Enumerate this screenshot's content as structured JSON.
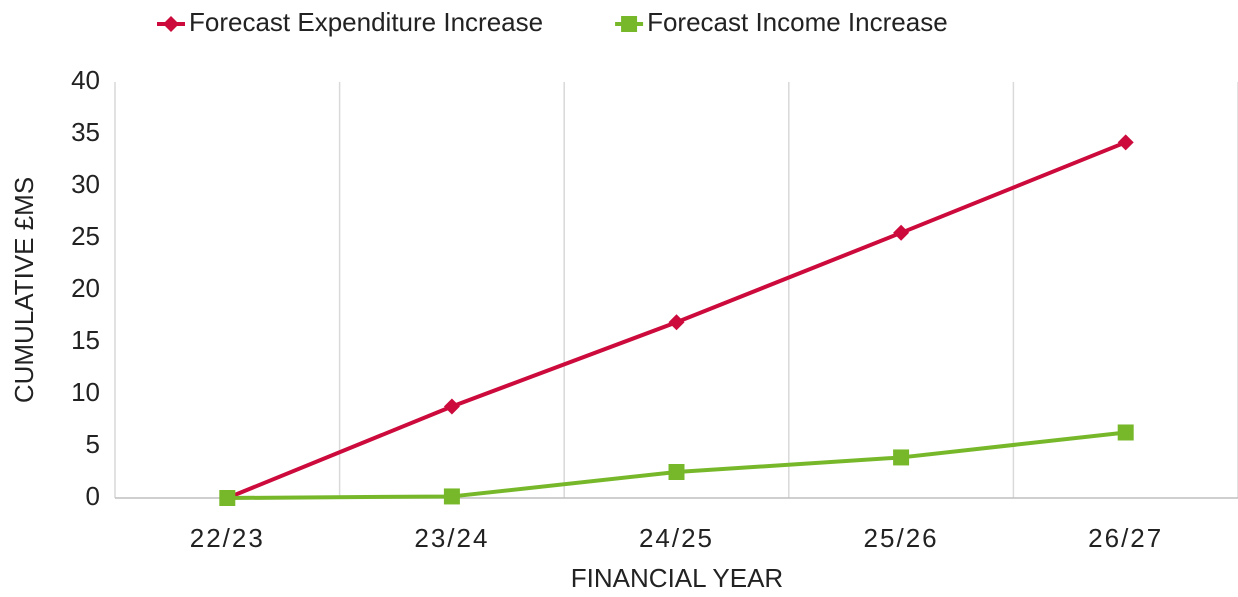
{
  "chart_data": {
    "type": "line",
    "categories": [
      "22/23",
      "23/24",
      "24/25",
      "25/26",
      "26/27"
    ],
    "series": [
      {
        "name": "Forecast Expenditure Increase",
        "color": "#cc0a3c",
        "marker": "diamond",
        "values": [
          0,
          8.8,
          16.9,
          25.5,
          34.2
        ]
      },
      {
        "name": "Forecast Income Increase",
        "color": "#77b82a",
        "marker": "square",
        "values": [
          0,
          0.15,
          2.5,
          3.9,
          6.3
        ]
      }
    ],
    "xlabel": "FINANCIAL YEAR",
    "ylabel": "CUMULATIVE £MS",
    "ylim": [
      0,
      40
    ],
    "yticks": [
      0,
      5,
      10,
      15,
      20,
      25,
      30,
      35,
      40
    ],
    "grid": true,
    "legend": "top"
  }
}
